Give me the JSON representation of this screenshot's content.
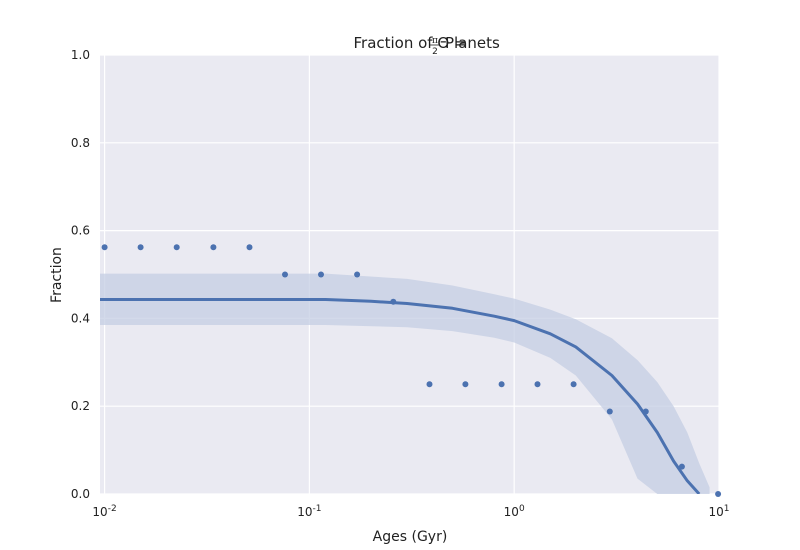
{
  "chart_data": {
    "type": "scatter",
    "title_main": "Fraction of Θ =",
    "title_frac_num": "π",
    "title_frac_den": "2",
    "title_tail": "Planets",
    "xlabel": "Ages (Gyr)",
    "ylabel": "Fraction",
    "x_scale": "log",
    "xlim": [
      0.0095,
      10.0
    ],
    "ylim": [
      0.0,
      1.0
    ],
    "x_ticks": [
      {
        "value": 0.01,
        "base": "10",
        "exp": "-2"
      },
      {
        "value": 0.1,
        "base": "10",
        "exp": "-1"
      },
      {
        "value": 1.0,
        "base": "10",
        "exp": "0"
      },
      {
        "value": 10.0,
        "base": "10",
        "exp": "1"
      }
    ],
    "y_ticks": [
      "0.0",
      "0.2",
      "0.4",
      "0.6",
      "0.8",
      "1.0"
    ],
    "grid": true,
    "colors": {
      "background": "#eaeaf2",
      "grid": "#ffffff",
      "points": "#4c72b0",
      "fit_line": "#4c72b0",
      "band": "#c4cde3"
    },
    "series": [
      {
        "type": "scatter",
        "x": [
          0.01,
          0.015,
          0.0225,
          0.034,
          0.051,
          0.076,
          0.114,
          0.171,
          0.257,
          0.386,
          0.578,
          0.868,
          1.3,
          1.95,
          2.93,
          4.39,
          6.59,
          9.9
        ],
        "y": [
          0.562,
          0.562,
          0.562,
          0.562,
          0.562,
          0.5,
          0.5,
          0.5,
          0.438,
          0.25,
          0.25,
          0.25,
          0.25,
          0.25,
          0.188,
          0.188,
          0.0625,
          0.0
        ]
      },
      {
        "type": "line",
        "x": [
          0.0095,
          0.12,
          0.2,
          0.3,
          0.5,
          0.8,
          1.0,
          1.5,
          2.0,
          3.0,
          4.0,
          5.0,
          6.0,
          7.0,
          8.0
        ],
        "y": [
          0.443,
          0.443,
          0.439,
          0.434,
          0.423,
          0.405,
          0.395,
          0.365,
          0.335,
          0.27,
          0.205,
          0.14,
          0.075,
          0.03,
          0.0
        ]
      },
      {
        "type": "band",
        "x": [
          0.0095,
          0.12,
          0.3,
          0.5,
          0.8,
          1.0,
          1.5,
          2.0,
          3.0,
          4.0,
          5.0,
          6.0,
          7.0,
          8.0,
          9.0
        ],
        "upper": [
          0.502,
          0.502,
          0.49,
          0.475,
          0.455,
          0.445,
          0.42,
          0.398,
          0.355,
          0.305,
          0.255,
          0.2,
          0.14,
          0.07,
          0.015
        ],
        "lower": [
          0.385,
          0.385,
          0.38,
          0.371,
          0.356,
          0.345,
          0.31,
          0.27,
          0.17,
          0.035,
          0.0,
          0.0,
          0.0,
          0.0,
          0.0
        ]
      }
    ]
  }
}
